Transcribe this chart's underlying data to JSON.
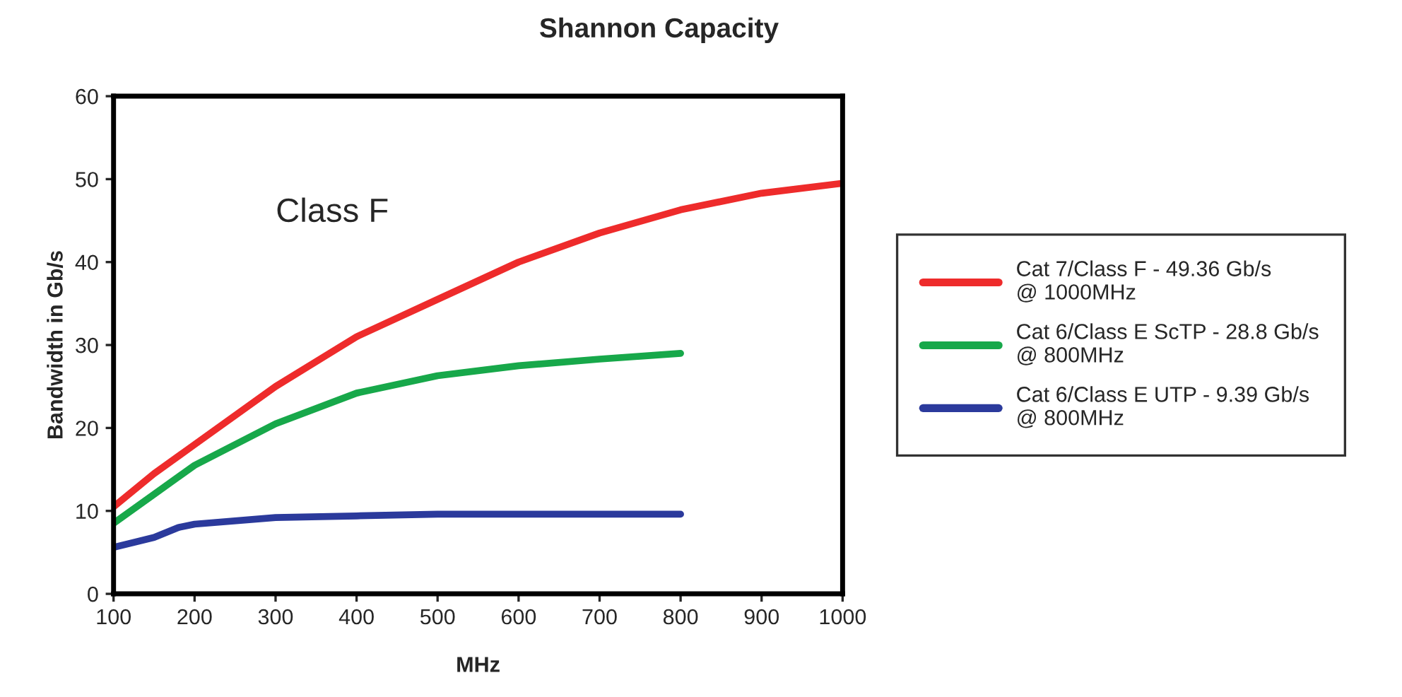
{
  "chart_data": {
    "type": "line",
    "title": "Shannon Capacity",
    "xlabel": "MHz",
    "ylabel": "Bandwidth in Gb/s",
    "annotations": [
      "Class F"
    ],
    "xlim": [
      100,
      1000
    ],
    "xticks": [
      100,
      200,
      300,
      400,
      500,
      600,
      700,
      800,
      900,
      1000
    ],
    "ylim": [
      0,
      60
    ],
    "yticks": [
      0,
      10,
      20,
      30,
      40,
      50,
      60
    ],
    "grid": false,
    "legend": "right",
    "series": [
      {
        "name": "Cat 7/Class F - 49.36 Gb/s\n@ 1000MHz",
        "color": "#ee2b2b",
        "x": [
          100,
          150,
          200,
          300,
          400,
          500,
          600,
          700,
          800,
          900,
          1000
        ],
        "values": [
          10.5,
          14.5,
          18,
          25,
          31,
          35.5,
          40,
          43.5,
          46.3,
          48.3,
          49.5
        ]
      },
      {
        "name": "Cat 6/Class E ScTP - 28.8 Gb/s\n@ 800MHz",
        "color": "#17a84a",
        "x": [
          100,
          150,
          200,
          300,
          400,
          500,
          600,
          700,
          800
        ],
        "values": [
          8.5,
          12,
          15.5,
          20.5,
          24.2,
          26.3,
          27.5,
          28.3,
          29
        ]
      },
      {
        "name": "Cat 6/Class E UTP - 9.39 Gb/s\n@ 800MHz",
        "color": "#2b3a9c",
        "x": [
          100,
          150,
          180,
          200,
          300,
          400,
          500,
          600,
          800
        ],
        "values": [
          5.6,
          6.8,
          8,
          8.4,
          9.2,
          9.4,
          9.6,
          9.6,
          9.6
        ]
      }
    ]
  }
}
